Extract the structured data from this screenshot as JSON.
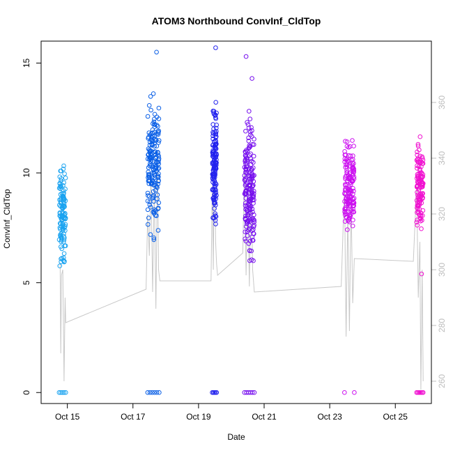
{
  "chart_data": {
    "type": "scatter",
    "title": "ATOM3 Northbound ConvInf_CldTop",
    "xlabel": "Date",
    "ylabel": "ConvInf_CldTop",
    "x_ticks": [
      "Oct 15",
      "Oct 17",
      "Oct 19",
      "Oct 21",
      "Oct 23",
      "Oct 25"
    ],
    "x_tick_days": [
      15,
      17,
      19,
      21,
      23,
      25
    ],
    "xlim": [
      14.2,
      26.1
    ],
    "ylim": [
      -0.5,
      16.0
    ],
    "y_ticks": [
      0,
      5,
      10,
      15
    ],
    "y2_ticks": [
      260,
      280,
      300,
      320,
      340,
      360
    ],
    "y2lim": [
      252,
      382
    ],
    "grid": false,
    "clusters": [
      {
        "day_start": 14.75,
        "day_end": 14.95,
        "y_min": 5.0,
        "y_max": 11.1,
        "zero_count": 5,
        "color": "#1aa3f0",
        "n": 120
      },
      {
        "day_start": 17.45,
        "day_end": 17.8,
        "y_min": 6.4,
        "y_max": 14.4,
        "zero_count": 6,
        "color": "#0a5fe6",
        "n": 170
      },
      {
        "day_start": 19.42,
        "day_end": 19.55,
        "y_min": 7.0,
        "y_max": 14.0,
        "zero_count": 5,
        "color": "#2222ee",
        "n": 140
      },
      {
        "day_start": 20.4,
        "day_end": 20.7,
        "y_min": 4.8,
        "y_max": 13.4,
        "zero_count": 6,
        "color": "#7710ee",
        "n": 180
      },
      {
        "day_start": 23.45,
        "day_end": 23.75,
        "y_min": 6.2,
        "y_max": 12.2,
        "zero_count": 2,
        "color": "#cc10f0",
        "n": 160
      },
      {
        "day_start": 25.65,
        "day_end": 25.85,
        "y_min": 6.6,
        "y_max": 12.0,
        "zero_count": 7,
        "color": "#f010d0",
        "n": 120
      }
    ],
    "outliers": [
      {
        "day": 17.72,
        "y": 15.5,
        "color": "#0a5fe6"
      },
      {
        "day": 19.52,
        "y": 15.7,
        "color": "#2222ee"
      },
      {
        "day": 20.45,
        "y": 15.3,
        "color": "#7710ee"
      },
      {
        "day": 20.63,
        "y": 14.3,
        "color": "#7710ee"
      },
      {
        "day": 25.8,
        "y": 5.4,
        "color": "#f010d0"
      }
    ],
    "line_series": {
      "name": "",
      "color": "#c8c8c8",
      "points": [
        [
          14.78,
          302
        ],
        [
          14.8,
          270
        ],
        [
          14.82,
          298
        ],
        [
          14.86,
          300
        ],
        [
          14.9,
          260
        ],
        [
          14.93,
          290
        ],
        [
          14.95,
          281
        ],
        [
          17.4,
          293
        ],
        [
          17.45,
          320
        ],
        [
          17.5,
          305
        ],
        [
          17.55,
          335
        ],
        [
          17.6,
          292
        ],
        [
          17.65,
          330
        ],
        [
          17.7,
          286
        ],
        [
          17.75,
          340
        ],
        [
          17.78,
          300
        ],
        [
          17.82,
          296
        ],
        [
          19.38,
          296
        ],
        [
          19.42,
          330
        ],
        [
          19.45,
          300
        ],
        [
          19.48,
          345
        ],
        [
          19.52,
          310
        ],
        [
          19.55,
          302
        ],
        [
          19.58,
          298
        ],
        [
          20.35,
          306
        ],
        [
          20.4,
          340
        ],
        [
          20.45,
          298
        ],
        [
          20.5,
          330
        ],
        [
          20.55,
          294
        ],
        [
          20.6,
          336
        ],
        [
          20.65,
          300
        ],
        [
          20.7,
          292
        ],
        [
          23.35,
          294
        ],
        [
          23.45,
          330
        ],
        [
          23.5,
          276
        ],
        [
          23.55,
          320
        ],
        [
          23.6,
          278
        ],
        [
          23.65,
          326
        ],
        [
          23.7,
          288
        ],
        [
          23.75,
          304
        ],
        [
          25.55,
          303
        ],
        [
          25.65,
          330
        ],
        [
          25.7,
          290
        ],
        [
          25.75,
          310
        ],
        [
          25.78,
          257
        ],
        [
          25.82,
          300
        ],
        [
          25.85,
          260
        ]
      ]
    }
  }
}
